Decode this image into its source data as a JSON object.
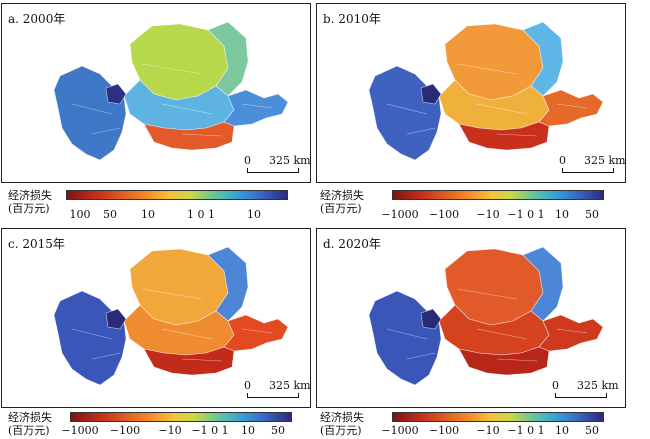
{
  "panels": [
    {
      "label": "a. 2000年",
      "scale_zero": "0",
      "scale_dist": "325 km",
      "colors": {
        "west": "#3f78c6",
        "north": "#b7d84a",
        "northeast": "#7ec8a0",
        "center": "#5fb3e0",
        "south": "#e25a2a",
        "east": "#4b8fd8",
        "core": "#2c2f82"
      }
    },
    {
      "label": "b. 2010年",
      "scale_zero": "0",
      "scale_dist": "325 km",
      "colors": {
        "west": "#3f62c0",
        "north": "#f29a3a",
        "northeast": "#5fb7e8",
        "center": "#f0b03c",
        "south": "#c8301c",
        "east": "#e56a2a",
        "core": "#2a2b78"
      }
    },
    {
      "label": "c. 2015年",
      "scale_zero": "0",
      "scale_dist": "325 km",
      "colors": {
        "west": "#3a56b8",
        "north": "#f2a73a",
        "northeast": "#4d86d6",
        "center": "#f08c30",
        "south": "#c22a1a",
        "east": "#e34a22",
        "core": "#2a2b78"
      }
    },
    {
      "label": "d. 2020年",
      "scale_zero": "0",
      "scale_dist": "325 km",
      "colors": {
        "west": "#3a56b8",
        "north": "#e2592a",
        "northeast": "#4d86d6",
        "center": "#d4421e",
        "south": "#b8261a",
        "east": "#cf3a1e",
        "core": "#2a2b78"
      }
    }
  ],
  "legends": [
    {
      "title1": "经济损失",
      "title2": "(百万元)",
      "ticks": [
        "100",
        "50",
        "10",
        "1 0 1",
        "10"
      ]
    },
    {
      "title1": "经济损失",
      "title2": "(百万元)",
      "ticks": [
        "−1000",
        "−100",
        "−10",
        "−1 0 1",
        "10",
        "50"
      ]
    },
    {
      "title1": "经济损失",
      "title2": "(百万元)",
      "ticks": [
        "−1000",
        "−100",
        "−10",
        "−1 0 1",
        "10",
        "50"
      ]
    },
    {
      "title1": "经济损失",
      "title2": "(百万元)",
      "ticks": [
        "−1000",
        "−100",
        "−10",
        "−1 0 1",
        "10",
        "50"
      ]
    }
  ]
}
